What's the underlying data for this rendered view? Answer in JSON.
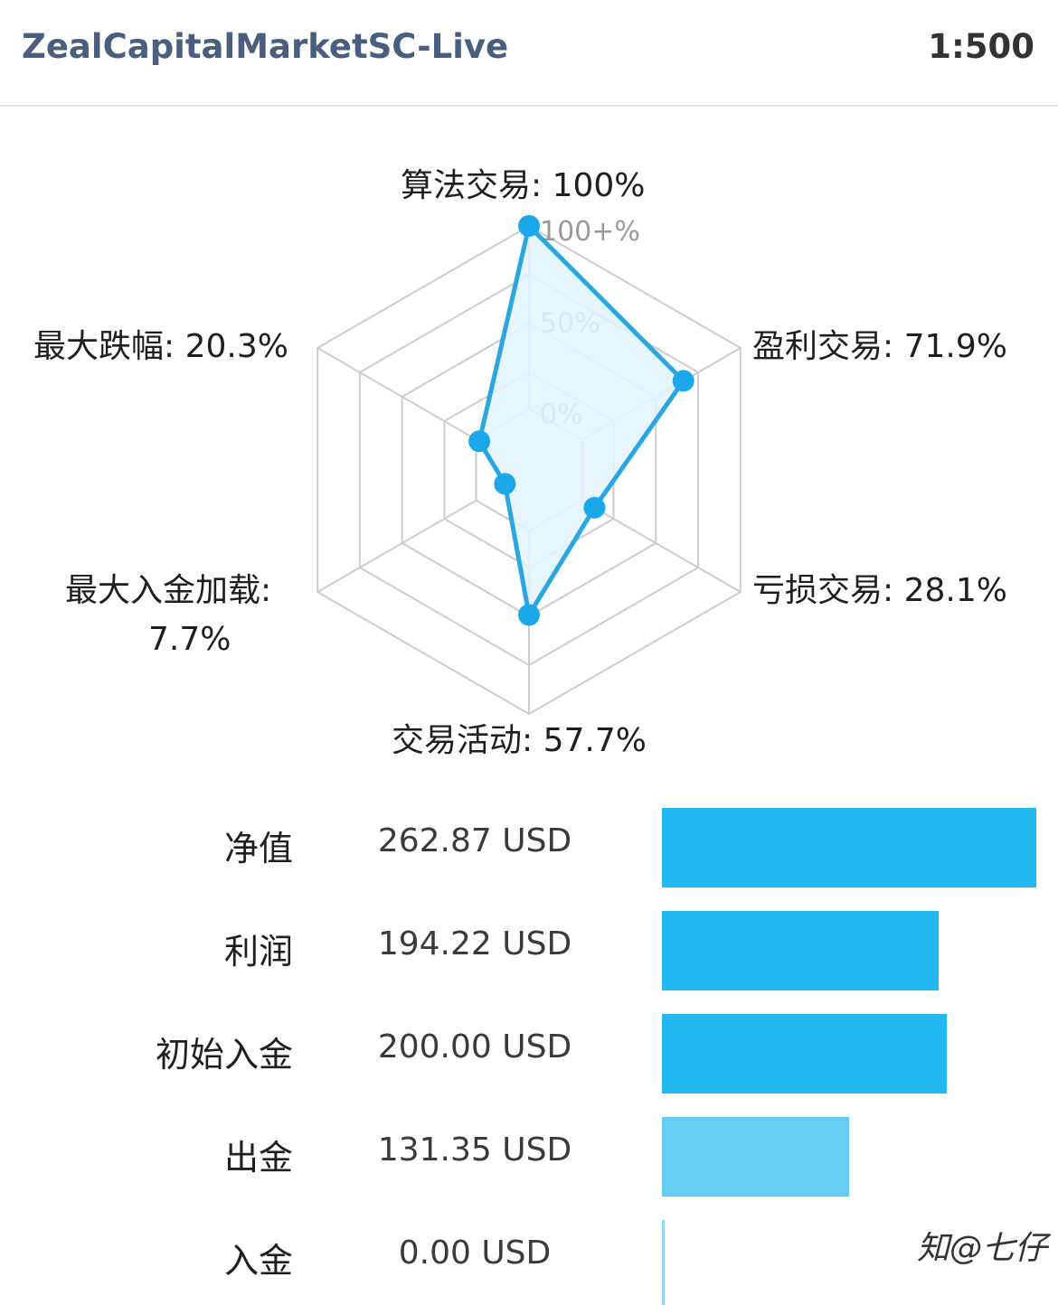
{
  "header": {
    "server": "ZealCapitalMarketSC-Live",
    "leverage": "1:500"
  },
  "radar": {
    "scale_labels": [
      "100+%",
      "50%",
      "0%"
    ],
    "axes": [
      {
        "label": "算法交易: 100%",
        "value": 100
      },
      {
        "label": "盈利交易: 71.9%",
        "value": 71.9
      },
      {
        "label": "亏损交易: 28.1%",
        "value": 28.1
      },
      {
        "label": "交易活动: 57.7%",
        "value": 57.7
      },
      {
        "label_line1": "最大入金加载:",
        "label_line2": "7.7%",
        "value": 7.7
      },
      {
        "label": "最大跌幅: 20.3%",
        "value": 20.3
      }
    ],
    "colors": {
      "line": "#2aa6e0",
      "fill": "#e3f4fb",
      "grid": "#cccccc",
      "point": "#1aa8ea"
    }
  },
  "stats": [
    {
      "label": "净值",
      "value": "262.87 USD",
      "amount": 262.87,
      "color": "#22b8f0"
    },
    {
      "label": "利润",
      "value": "194.22 USD",
      "amount": 194.22,
      "color": "#22b8f0"
    },
    {
      "label": "初始入金",
      "value": "200.00 USD",
      "amount": 200.0,
      "color": "#22b8f0"
    },
    {
      "label": "出金",
      "value": "131.35 USD",
      "amount": 131.35,
      "color": "#66ccf4"
    },
    {
      "label": "入金",
      "value": "0.00 USD",
      "amount": 0.0,
      "color": "#8fd8f6"
    }
  ],
  "watermark": "知@七仔"
}
